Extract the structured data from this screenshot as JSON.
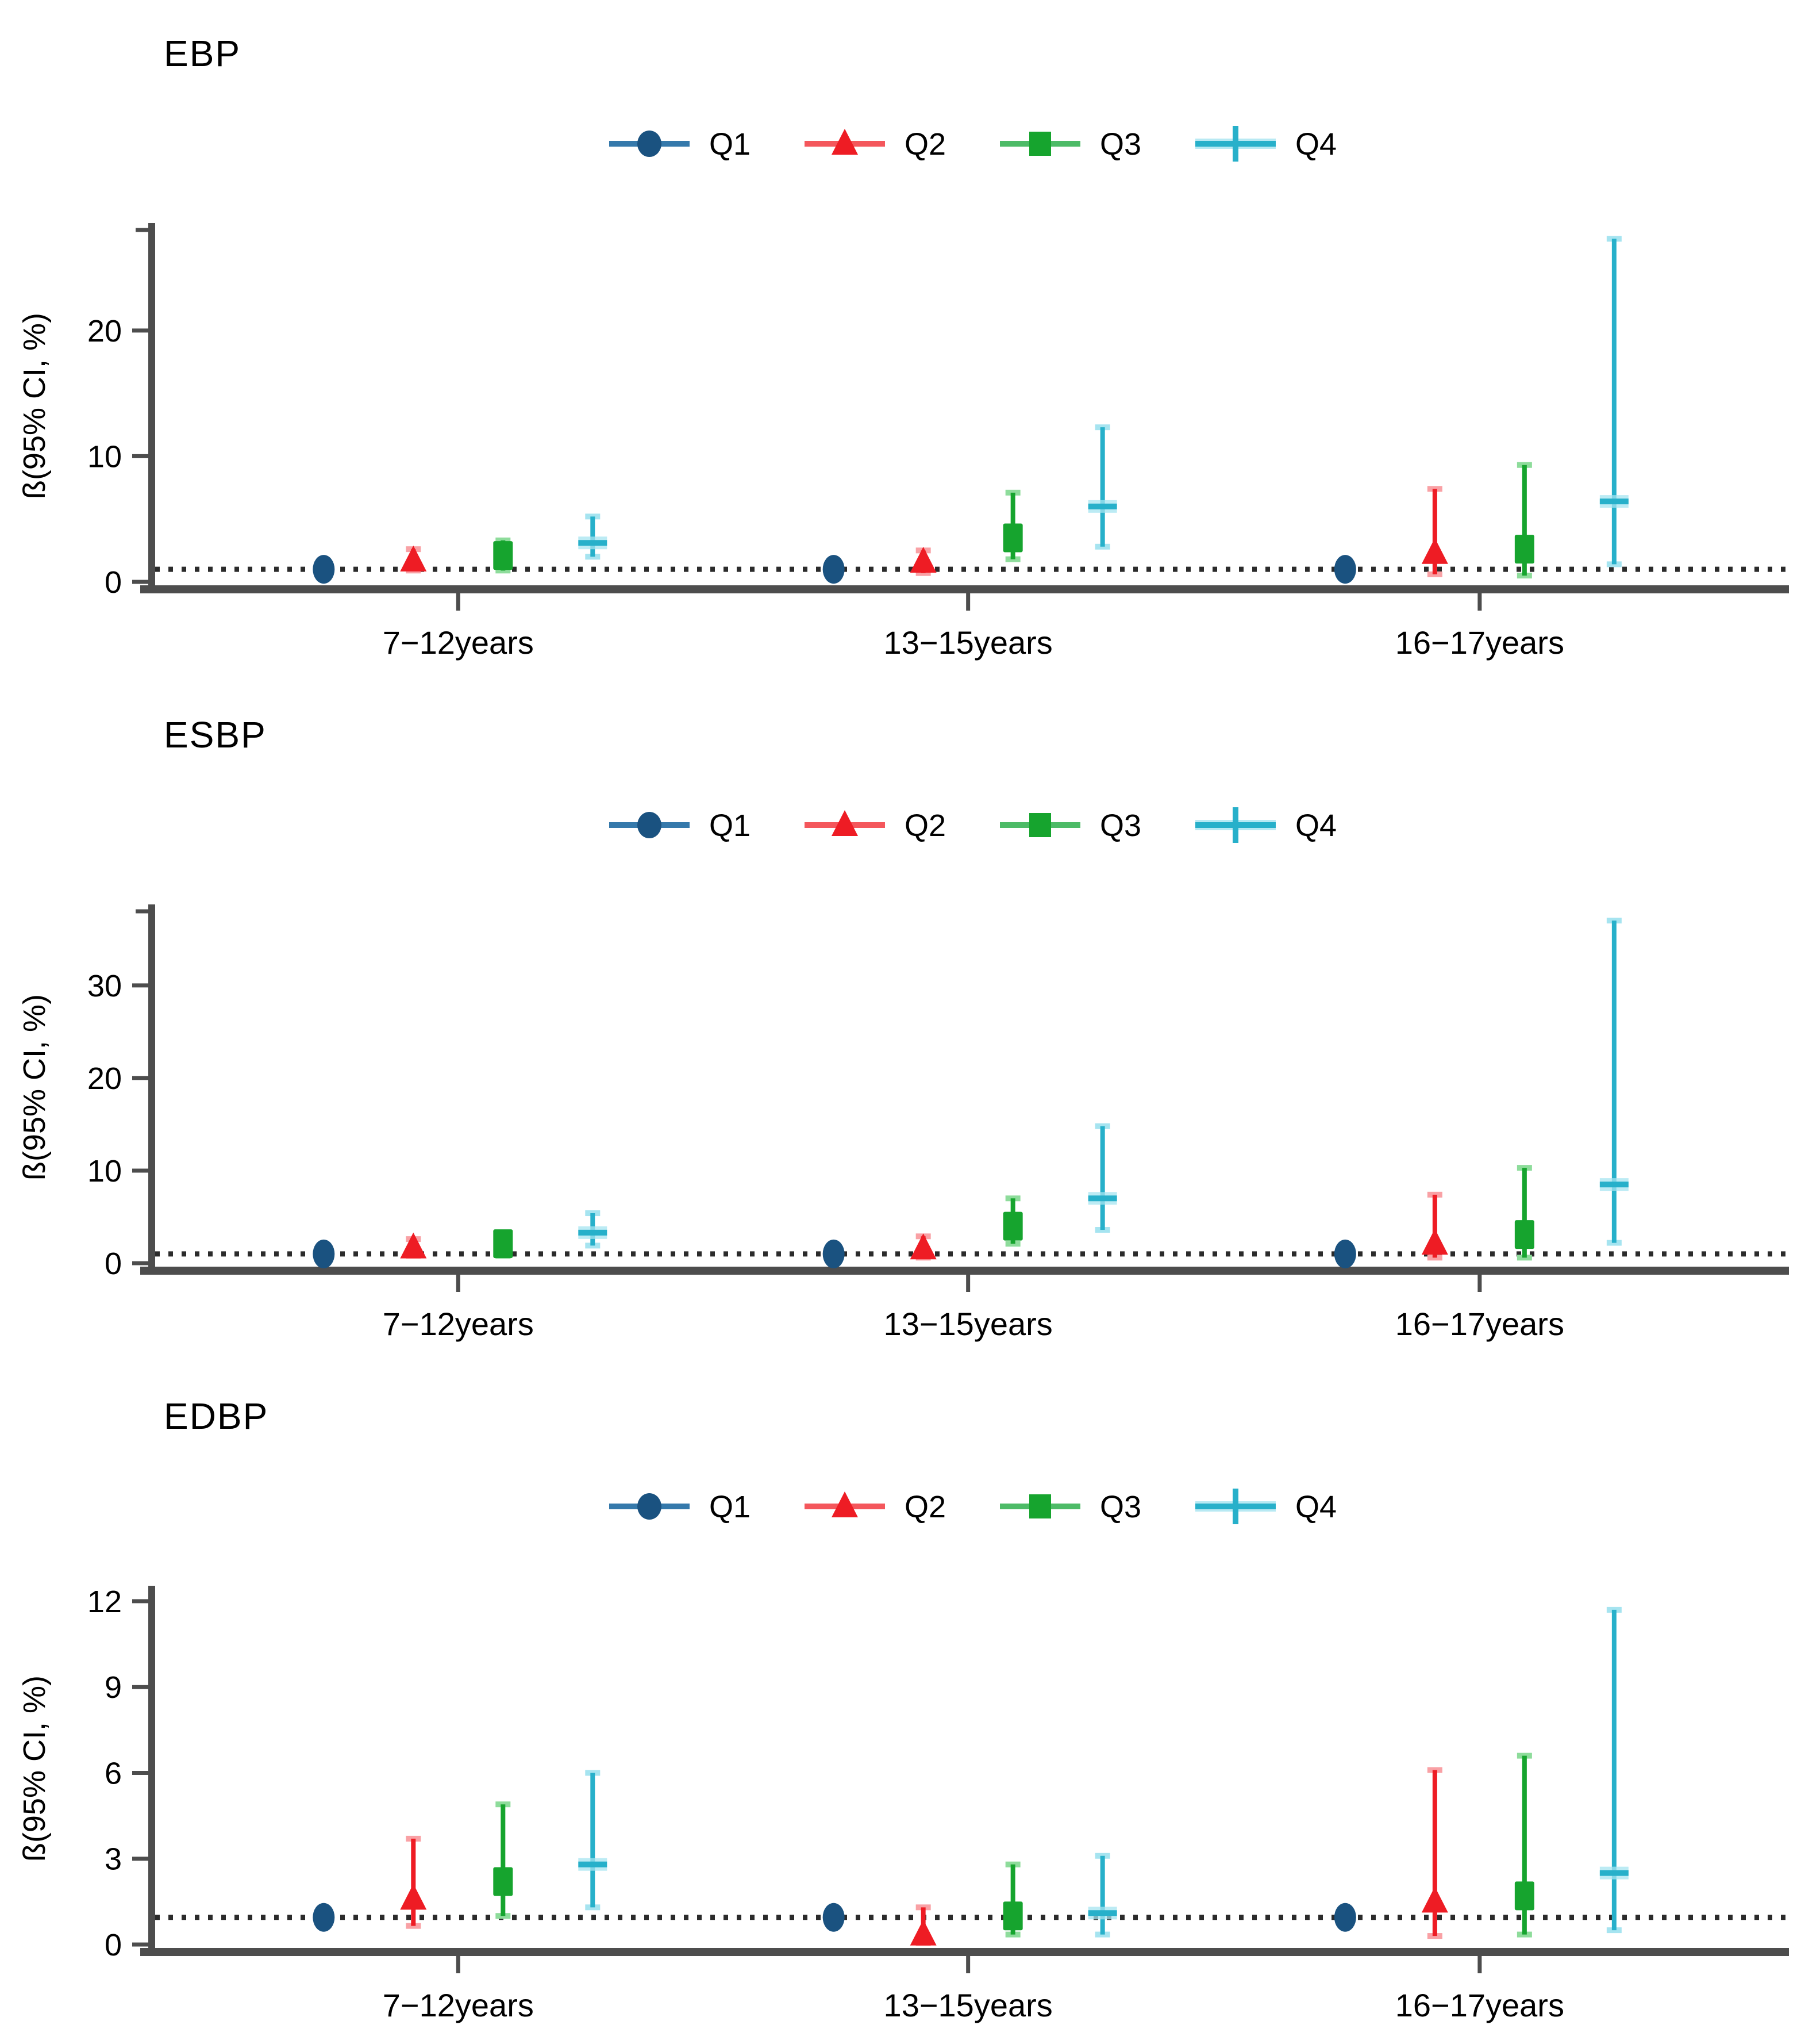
{
  "figure": {
    "background": "#ffffff",
    "axis_color": "#4d4d4d",
    "ref_line_color": "#2b2b2b",
    "text_color": "#000000"
  },
  "legend": {
    "labels": [
      "Q1",
      "Q2",
      "Q3",
      "Q4"
    ]
  },
  "chart_data": [
    {
      "type": "scatter",
      "title": "EBP",
      "ylabel": "ß(95% CI, %)",
      "yticks": [
        0,
        10,
        20
      ],
      "ylim": [
        0,
        28
      ],
      "ref_line": 1.0,
      "axis_top_tick": true,
      "legend_position": "top-center",
      "categories": [
        "7−12years",
        "13−15years",
        "16−17years"
      ],
      "series": [
        {
          "name": "Q1",
          "marker": "circle",
          "color": "#1a5280",
          "light": "#7fb3d5",
          "legend_line": "#3579ab",
          "points": [
            {
              "est": 1.0,
              "lo": 0.8,
              "hi": 1.2
            },
            {
              "est": 1.0,
              "lo": 0.8,
              "hi": 1.2
            },
            {
              "est": 1.0,
              "lo": 0.8,
              "hi": 1.2
            }
          ]
        },
        {
          "name": "Q2",
          "marker": "triangle",
          "color": "#ee1c24",
          "light": "#f9a1a5",
          "legend_line": "#f4575c",
          "points": [
            {
              "est": 1.7,
              "lo": 0.9,
              "hi": 2.6
            },
            {
              "est": 1.6,
              "lo": 0.7,
              "hi": 2.5
            },
            {
              "est": 2.3,
              "lo": 0.6,
              "hi": 7.4
            }
          ]
        },
        {
          "name": "Q3",
          "marker": "square",
          "color": "#16a42e",
          "light": "#8edc9b",
          "legend_line": "#4dbb67",
          "points": [
            {
              "est": 2.1,
              "lo": 0.9,
              "hi": 3.3
            },
            {
              "est": 3.5,
              "lo": 1.8,
              "hi": 7.1
            },
            {
              "est": 2.6,
              "lo": 0.5,
              "hi": 9.3
            }
          ]
        },
        {
          "name": "Q4",
          "marker": "plus",
          "color": "#27b0ca",
          "light": "#a6e4f0",
          "legend_line": "#27b0ca",
          "points": [
            {
              "est": 3.1,
              "lo": 2.0,
              "hi": 5.2
            },
            {
              "est": 6.0,
              "lo": 2.8,
              "hi": 12.3
            },
            {
              "est": 6.4,
              "lo": 1.4,
              "hi": 27.3
            }
          ]
        }
      ]
    },
    {
      "type": "scatter",
      "title": "ESBP",
      "ylabel": "ß(95% CI, %)",
      "yticks": [
        0,
        10,
        20,
        30
      ],
      "ylim": [
        0,
        38
      ],
      "ref_line": 1.0,
      "axis_top_tick": true,
      "legend_position": "top-center",
      "categories": [
        "7−12years",
        "13−15years",
        "16−17years"
      ],
      "series": [
        {
          "name": "Q1",
          "marker": "circle",
          "color": "#1a5280",
          "light": "#7fb3d5",
          "legend_line": "#3579ab",
          "points": [
            {
              "est": 1.0,
              "lo": 0.8,
              "hi": 1.2
            },
            {
              "est": 1.0,
              "lo": 0.8,
              "hi": 1.2
            },
            {
              "est": 1.0,
              "lo": 0.8,
              "hi": 1.2
            }
          ]
        },
        {
          "name": "Q2",
          "marker": "triangle",
          "color": "#ee1c24",
          "light": "#f9a1a5",
          "legend_line": "#f4575c",
          "points": [
            {
              "est": 1.7,
              "lo": 0.8,
              "hi": 2.6
            },
            {
              "est": 1.6,
              "lo": 0.6,
              "hi": 2.9
            },
            {
              "est": 2.1,
              "lo": 0.6,
              "hi": 7.4
            }
          ]
        },
        {
          "name": "Q3",
          "marker": "square",
          "color": "#16a42e",
          "light": "#8edc9b",
          "legend_line": "#4dbb67",
          "points": [
            {
              "est": 2.1,
              "lo": 0.8,
              "hi": 3.2
            },
            {
              "est": 4.0,
              "lo": 2.1,
              "hi": 7.0
            },
            {
              "est": 3.1,
              "lo": 0.6,
              "hi": 10.3
            }
          ]
        },
        {
          "name": "Q4",
          "marker": "plus",
          "color": "#27b0ca",
          "light": "#a6e4f0",
          "legend_line": "#27b0ca",
          "points": [
            {
              "est": 3.3,
              "lo": 1.9,
              "hi": 5.4
            },
            {
              "est": 7.0,
              "lo": 3.6,
              "hi": 14.8
            },
            {
              "est": 8.5,
              "lo": 2.2,
              "hi": 37.0
            }
          ]
        }
      ]
    },
    {
      "type": "scatter",
      "title": "EDBP",
      "ylabel": "ß(95% CI, %)",
      "yticks": [
        0,
        3,
        6,
        9,
        12
      ],
      "ylim": [
        0,
        12.3
      ],
      "ref_line": 0.95,
      "axis_top_tick": false,
      "legend_position": "top-center",
      "categories": [
        "7−12years",
        "13−15years",
        "16−17years"
      ],
      "series": [
        {
          "name": "Q1",
          "marker": "circle",
          "color": "#1a5280",
          "light": "#7fb3d5",
          "legend_line": "#3579ab",
          "points": [
            {
              "est": 0.95,
              "lo": 0.8,
              "hi": 1.1
            },
            {
              "est": 0.95,
              "lo": 0.8,
              "hi": 1.1
            },
            {
              "est": 0.95,
              "lo": 0.8,
              "hi": 1.1
            }
          ]
        },
        {
          "name": "Q2",
          "marker": "triangle",
          "color": "#ee1c24",
          "light": "#f9a1a5",
          "legend_line": "#f4575c",
          "points": [
            {
              "est": 1.6,
              "lo": 0.65,
              "hi": 3.7
            },
            {
              "est": 0.35,
              "lo": 0.05,
              "hi": 1.3
            },
            {
              "est": 1.5,
              "lo": 0.3,
              "hi": 6.1
            }
          ]
        },
        {
          "name": "Q3",
          "marker": "square",
          "color": "#16a42e",
          "light": "#8edc9b",
          "legend_line": "#4dbb67",
          "points": [
            {
              "est": 2.2,
              "lo": 1.0,
              "hi": 4.9
            },
            {
              "est": 1.0,
              "lo": 0.35,
              "hi": 2.8
            },
            {
              "est": 1.7,
              "lo": 0.35,
              "hi": 6.6
            }
          ]
        },
        {
          "name": "Q4",
          "marker": "plus",
          "color": "#27b0ca",
          "light": "#a6e4f0",
          "legend_line": "#27b0ca",
          "points": [
            {
              "est": 2.8,
              "lo": 1.3,
              "hi": 6.0
            },
            {
              "est": 1.1,
              "lo": 0.35,
              "hi": 3.1
            },
            {
              "est": 2.5,
              "lo": 0.5,
              "hi": 11.7
            }
          ]
        }
      ]
    }
  ]
}
